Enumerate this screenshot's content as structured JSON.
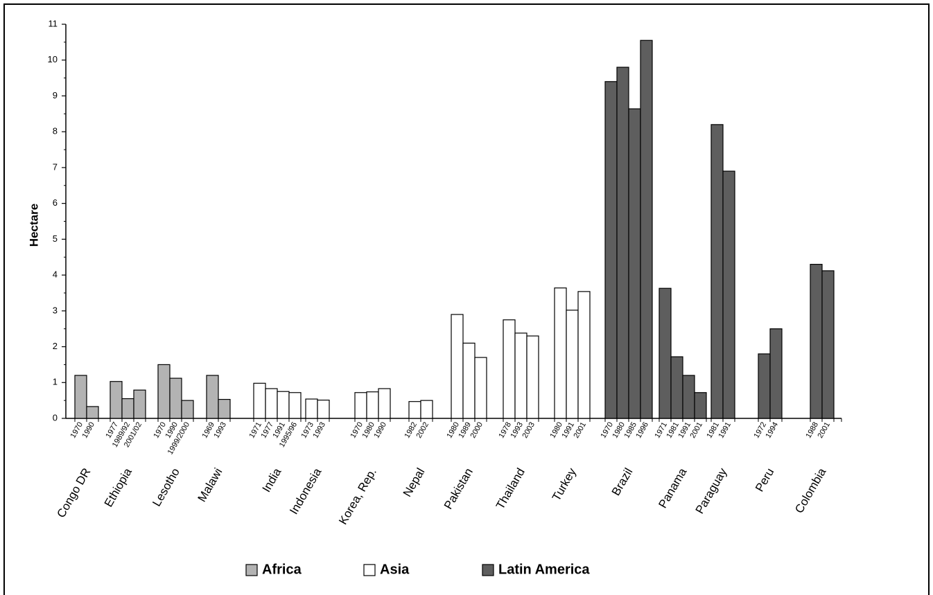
{
  "chart_data": {
    "type": "bar",
    "title": "",
    "xlabel": "",
    "ylabel": "Hectare",
    "ylim": [
      0,
      11
    ],
    "yticks": [
      0,
      1,
      2,
      3,
      4,
      5,
      6,
      7,
      8,
      9,
      10,
      11
    ],
    "grid": false,
    "legend_position": "bottom",
    "colors": {
      "Africa": "#b3b3b3",
      "Asia": "#ffffff",
      "Latin America": "#5e5e5e",
      "stroke": "#000000"
    },
    "legend": [
      {
        "name": "Africa",
        "color": "#b3b3b3"
      },
      {
        "name": "Asia",
        "color": "#ffffff"
      },
      {
        "name": "Latin America",
        "color": "#5e5e5e"
      }
    ],
    "groups": [
      {
        "country": "Congo DR",
        "region": "Africa",
        "bars": [
          {
            "year": "1970",
            "value": 1.2
          },
          {
            "year": "1990",
            "value": 0.33
          }
        ]
      },
      {
        "country": "Ethiopia",
        "region": "Africa",
        "bars": [
          {
            "year": "1977",
            "value": 1.03
          },
          {
            "year": "1989/92",
            "value": 0.55
          },
          {
            "year": "2001/02",
            "value": 0.79
          }
        ]
      },
      {
        "country": "Lesotho",
        "region": "Africa",
        "bars": [
          {
            "year": "1970",
            "value": 1.5
          },
          {
            "year": "1990",
            "value": 1.12
          },
          {
            "year": "1999/2000",
            "value": 0.5
          }
        ]
      },
      {
        "country": "Malawi",
        "region": "Africa",
        "bars": [
          {
            "year": "1969",
            "value": 1.2
          },
          {
            "year": "1993",
            "value": 0.53
          }
        ]
      },
      {
        "country": "India",
        "region": "Asia",
        "bars": [
          {
            "year": "1971",
            "value": 0.98
          },
          {
            "year": "1977",
            "value": 0.83
          },
          {
            "year": "1991",
            "value": 0.75
          },
          {
            "year": "1995/96",
            "value": 0.72
          }
        ]
      },
      {
        "country": "Indonesia",
        "region": "Asia",
        "bars": [
          {
            "year": "1973",
            "value": 0.54
          },
          {
            "year": "1993",
            "value": 0.51
          }
        ]
      },
      {
        "country": "Korea, Rep.",
        "region": "Asia",
        "bars": [
          {
            "year": "1970",
            "value": 0.72
          },
          {
            "year": "1980",
            "value": 0.74
          },
          {
            "year": "1990",
            "value": 0.83
          }
        ]
      },
      {
        "country": "Nepal",
        "region": "Asia",
        "bars": [
          {
            "year": "1982",
            "value": 0.47
          },
          {
            "year": "2002",
            "value": 0.5
          }
        ]
      },
      {
        "country": "Pakistan",
        "region": "Asia",
        "bars": [
          {
            "year": "1980",
            "value": 2.9
          },
          {
            "year": "1989",
            "value": 2.1
          },
          {
            "year": "2000",
            "value": 1.7
          }
        ]
      },
      {
        "country": "Thailand",
        "region": "Asia",
        "bars": [
          {
            "year": "1978",
            "value": 2.75
          },
          {
            "year": "1993",
            "value": 2.38
          },
          {
            "year": "2003",
            "value": 2.3
          }
        ]
      },
      {
        "country": "Turkey",
        "region": "Asia",
        "bars": [
          {
            "year": "1980",
            "value": 3.64
          },
          {
            "year": "1991",
            "value": 3.02
          },
          {
            "year": "2001",
            "value": 3.54
          }
        ]
      },
      {
        "country": "Brazil",
        "region": "Latin America",
        "bars": [
          {
            "year": "1970",
            "value": 9.4
          },
          {
            "year": "1980",
            "value": 9.8
          },
          {
            "year": "1985",
            "value": 8.64
          },
          {
            "year": "1996",
            "value": 10.55
          }
        ]
      },
      {
        "country": "Panama",
        "region": "Latin America",
        "bars": [
          {
            "year": "1971",
            "value": 3.63
          },
          {
            "year": "1981",
            "value": 1.72
          },
          {
            "year": "1991",
            "value": 1.2
          },
          {
            "year": "2001",
            "value": 0.72
          }
        ]
      },
      {
        "country": "Paraguay",
        "region": "Latin America",
        "bars": [
          {
            "year": "1981",
            "value": 8.2
          },
          {
            "year": "1991",
            "value": 6.9
          }
        ]
      },
      {
        "country": "Peru",
        "region": "Latin America",
        "bars": [
          {
            "year": "1972",
            "value": 1.8
          },
          {
            "year": "1994",
            "value": 2.5
          }
        ]
      },
      {
        "country": "Colombia",
        "region": "Latin America",
        "bars": [
          {
            "year": "1988",
            "value": 4.3
          },
          {
            "year": "2001",
            "value": 4.12
          }
        ]
      }
    ]
  }
}
